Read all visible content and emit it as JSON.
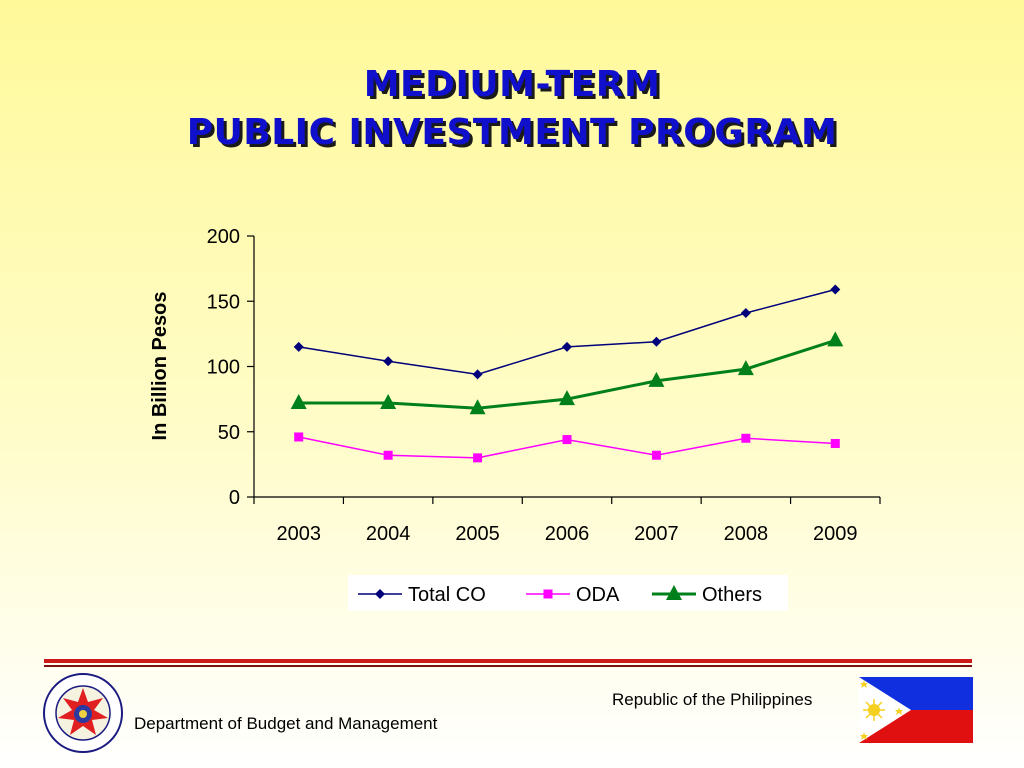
{
  "slide": {
    "title_line1": "MEDIUM-TERM",
    "title_line2": "PUBLIC INVESTMENT PROGRAM",
    "footer_department": "Department of Budget and Management",
    "footer_republic": "Republic of the Philippines",
    "seal_icon": "dbm-seal-icon",
    "flag_icon": "philippine-flag-icon"
  },
  "chart_data": {
    "type": "line",
    "title": "",
    "xlabel": "",
    "ylabel": "In Billion Pesos",
    "categories": [
      "2003",
      "2004",
      "2005",
      "2006",
      "2007",
      "2008",
      "2009"
    ],
    "ylim": [
      0,
      200
    ],
    "yticks": [
      "0",
      "50",
      "100",
      "150",
      "200"
    ],
    "grid": false,
    "legend": "bottom",
    "series": [
      {
        "name": "Total CO",
        "color": "#00007a",
        "marker": "diamond",
        "values": [
          115,
          104,
          94,
          115,
          119,
          141,
          159
        ]
      },
      {
        "name": "ODA",
        "color": "#ff00ff",
        "marker": "square",
        "values": [
          46,
          32,
          30,
          44,
          32,
          45,
          41
        ]
      },
      {
        "name": "Others",
        "color": "#00801a",
        "marker": "triangle",
        "values": [
          72,
          72,
          68,
          75,
          89,
          98,
          120
        ]
      }
    ]
  }
}
